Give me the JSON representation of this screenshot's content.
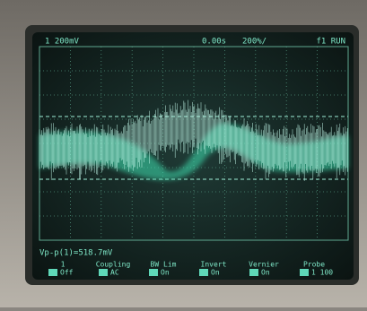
{
  "status_bar": {
    "channel": "1 200mV",
    "time_offset": "0.00s",
    "time_scale": "200%/",
    "run_state": "f1 RUN"
  },
  "measurement": "Vp-p(1)=518.7mV",
  "softkeys": [
    {
      "label": "1",
      "value": "Off"
    },
    {
      "label": "Coupling",
      "value": "AC"
    },
    {
      "label": "BW Lim",
      "value": "On"
    },
    {
      "label": "Invert",
      "value": "On"
    },
    {
      "label": "Vernier",
      "value": "On"
    },
    {
      "label": "Probe",
      "value": "1 100"
    }
  ]
}
